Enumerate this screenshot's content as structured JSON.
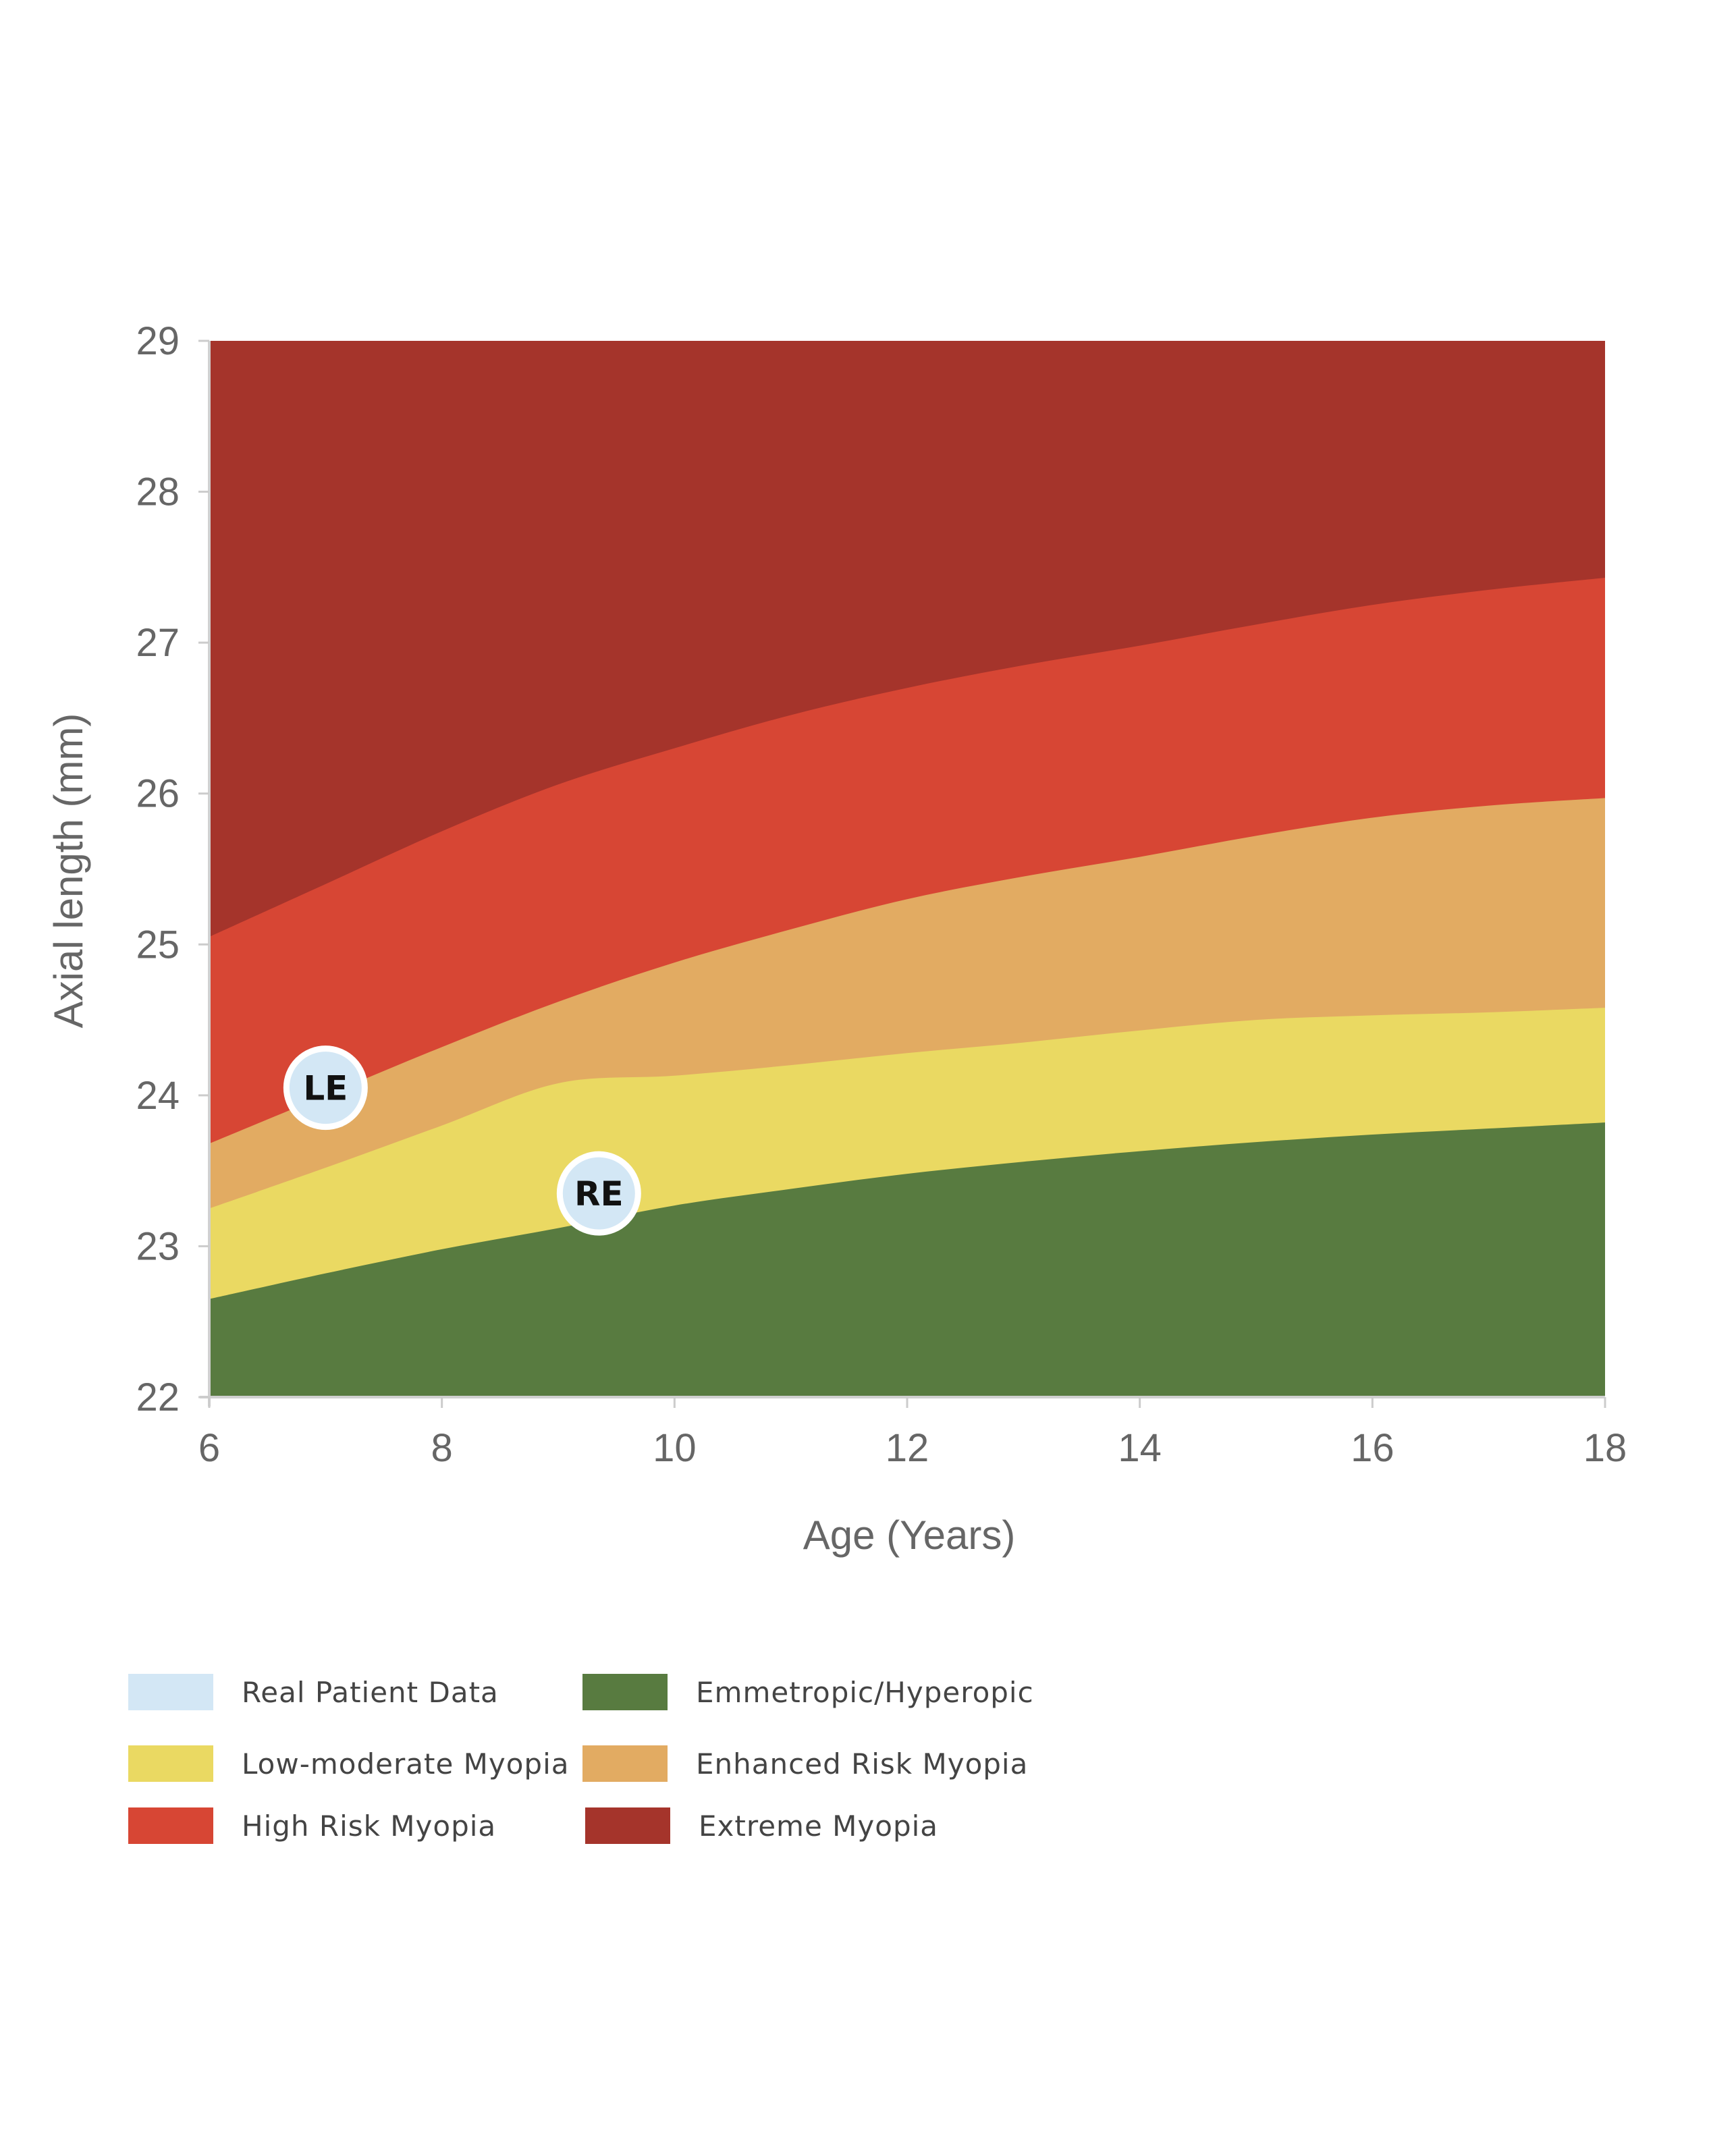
{
  "chart_data": {
    "type": "area",
    "title": "",
    "xlabel": "Age (Years)",
    "ylabel": "Axial length (mm)",
    "xlim": [
      6,
      18
    ],
    "ylim": [
      22,
      29
    ],
    "xticks": [
      6,
      8,
      10,
      12,
      14,
      16,
      18
    ],
    "yticks": [
      22,
      23,
      24,
      25,
      26,
      27,
      28,
      29
    ],
    "x": [
      6,
      7,
      8,
      9,
      10,
      11,
      12,
      13,
      14,
      15,
      16,
      17,
      18
    ],
    "boundaries": [
      {
        "name": "Emmetropic/Hyperopic",
        "upper": [
          22.65,
          22.82,
          22.98,
          23.12,
          23.27,
          23.38,
          23.48,
          23.56,
          23.63,
          23.69,
          23.74,
          23.78,
          23.82
        ]
      },
      {
        "name": "Low-moderate Myopia",
        "upper": [
          23.25,
          23.52,
          23.8,
          24.08,
          24.13,
          24.2,
          24.28,
          24.35,
          24.43,
          24.5,
          24.53,
          24.55,
          24.58
        ]
      },
      {
        "name": "Enhanced Risk Myopia",
        "upper": [
          23.68,
          24.0,
          24.32,
          24.62,
          24.88,
          25.1,
          25.3,
          25.45,
          25.58,
          25.72,
          25.84,
          25.92,
          25.97
        ]
      },
      {
        "name": "High Risk Myopia",
        "upper": [
          25.05,
          25.4,
          25.75,
          26.06,
          26.3,
          26.52,
          26.7,
          26.85,
          26.98,
          27.12,
          27.25,
          27.35,
          27.43
        ]
      },
      {
        "name": "Extreme Myopia",
        "upper": [
          29,
          29,
          29,
          29,
          29,
          29,
          29,
          29,
          29,
          29,
          29,
          29,
          29
        ]
      }
    ],
    "points": [
      {
        "label": "LE",
        "x": 7.0,
        "y": 24.05
      },
      {
        "label": "RE",
        "x": 9.35,
        "y": 23.35
      }
    ],
    "colors": {
      "emmetropic": "#587b40",
      "low_moderate": "#ead962",
      "enhanced": "#e2ab62",
      "high_risk": "#d74634",
      "extreme": "#a5342b",
      "patient": "#d3e7f5"
    },
    "grid": false,
    "legend_position": "bottom"
  },
  "legend": [
    {
      "label": "Real Patient Data",
      "color": "#d3e7f5"
    },
    {
      "label": "Emmetropic/Hyperopic",
      "color": "#587b40"
    },
    {
      "label": "Low-moderate Myopia",
      "color": "#ead962"
    },
    {
      "label": "Enhanced Risk Myopia",
      "color": "#e2ab62"
    },
    {
      "label": "High Risk Myopia",
      "color": "#d74634"
    },
    {
      "label": "Extreme Myopia",
      "color": "#a5342b"
    }
  ]
}
